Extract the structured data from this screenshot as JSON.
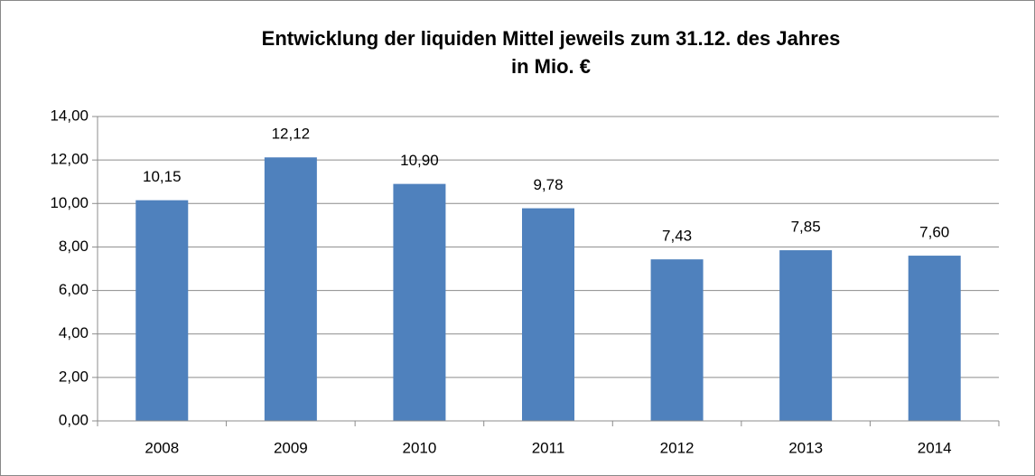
{
  "chart_data": {
    "type": "bar",
    "title": "Entwicklung der liquiden Mittel jeweils zum 31.12. des Jahres",
    "subtitle": "in Mio. €",
    "categories": [
      "2008",
      "2009",
      "2010",
      "2011",
      "2012",
      "2013",
      "2014"
    ],
    "values": [
      10.15,
      12.12,
      10.9,
      9.78,
      7.43,
      7.85,
      7.6
    ],
    "value_labels": [
      "10,15",
      "12,12",
      "10,90",
      "9,78",
      "7,43",
      "7,85",
      "7,60"
    ],
    "color": "#4f81bd",
    "ylim": [
      0,
      14
    ],
    "yticks": [
      {
        "value": 0,
        "label": "0,00"
      },
      {
        "value": 2,
        "label": "2,00"
      },
      {
        "value": 4,
        "label": "4,00"
      },
      {
        "value": 6,
        "label": "6,00"
      },
      {
        "value": 8,
        "label": "8,00"
      },
      {
        "value": 10,
        "label": "10,00"
      },
      {
        "value": 12,
        "label": "12,00"
      },
      {
        "value": 14,
        "label": "14,00"
      }
    ],
    "grid": true
  }
}
